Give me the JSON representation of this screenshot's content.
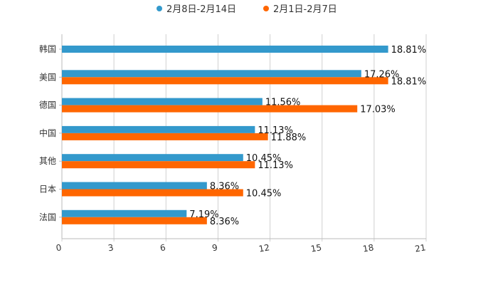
{
  "chart_data": {
    "type": "bar",
    "orientation": "horizontal",
    "title": "",
    "xlabel": "",
    "ylabel": "",
    "xlim": [
      0,
      21
    ],
    "xticks": [
      0,
      3,
      6,
      9,
      12,
      15,
      18,
      21
    ],
    "grid": true,
    "legend_position": "top-center",
    "value_suffix": "%",
    "categories": [
      "韩国",
      "美国",
      "德国",
      "中国",
      "其他",
      "日本",
      "法国"
    ],
    "series": [
      {
        "name": "2月8日-2月14日",
        "color": "#3399cc",
        "values": [
          18.81,
          17.26,
          11.56,
          11.13,
          10.45,
          8.36,
          7.19
        ],
        "labels": [
          "18.81%",
          "17.26%",
          "11.56%",
          "11.13%",
          "10.45%",
          "8.36%",
          "7.19%"
        ]
      },
      {
        "name": "2月1日-2月7日",
        "color": "#ff6600",
        "values": [
          null,
          18.81,
          17.03,
          11.88,
          11.13,
          10.45,
          8.36
        ],
        "labels": [
          "",
          "18.81%",
          "17.03%",
          "11.88%",
          "11.13%",
          "10.45%",
          "8.36%"
        ]
      }
    ]
  }
}
